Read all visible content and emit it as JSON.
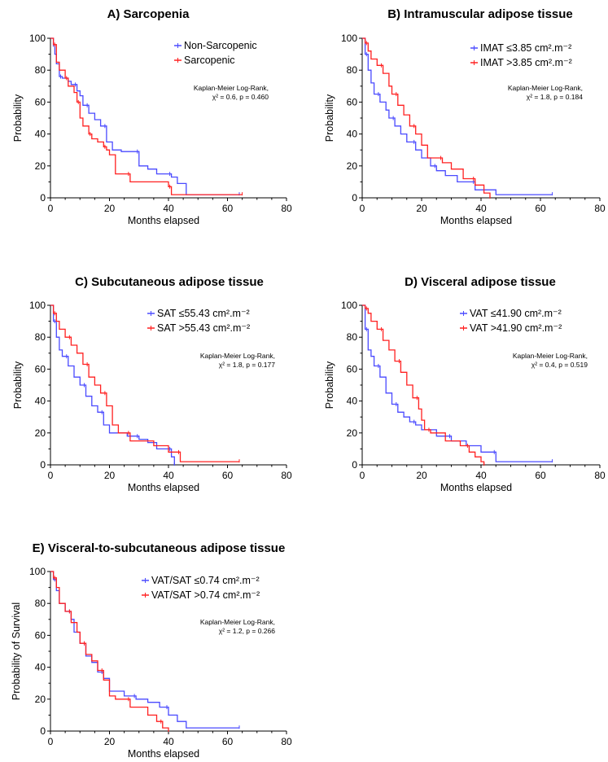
{
  "chart_data": [
    {
      "type": "line",
      "title": "A) Sarcopenia",
      "xlabel": "Months elapsed",
      "ylabel": "Probability",
      "xlim": [
        0,
        80
      ],
      "ylim": [
        0,
        100
      ],
      "xticks": [
        0,
        20,
        40,
        60,
        80
      ],
      "yticks": [
        0,
        20,
        40,
        60,
        80,
        100
      ],
      "legend_position": "top-right",
      "stats": [
        "Kaplan-Meier Log-Rank,",
        "χ² = 0.6, p = 0.460"
      ],
      "series": [
        {
          "name": "Non-Sarcopenic",
          "color": "#4a4aff",
          "x": [
            0,
            1,
            1.5,
            2,
            3,
            4,
            6,
            7,
            9,
            10,
            11,
            13,
            15,
            17,
            19,
            21,
            24,
            30,
            33,
            36,
            41,
            43,
            46,
            64
          ],
          "y": [
            100,
            96,
            90,
            84,
            76,
            75,
            73,
            71,
            67,
            64,
            58,
            53,
            49,
            45,
            35,
            30,
            29,
            20,
            18,
            15,
            13,
            9,
            2,
            2
          ]
        },
        {
          "name": "Sarcopenic",
          "color": "#ff2020",
          "x": [
            0,
            1,
            2,
            3,
            5,
            6,
            8,
            9,
            10,
            11,
            13,
            14,
            16,
            18,
            19,
            20,
            22,
            27,
            33,
            40,
            41,
            65
          ],
          "y": [
            100,
            96,
            85,
            80,
            75,
            70,
            66,
            60,
            50,
            45,
            40,
            37,
            35,
            32,
            30,
            27,
            15,
            10,
            10,
            7,
            2,
            2
          ]
        }
      ]
    },
    {
      "type": "line",
      "title": "B) Intramuscular adipose tissue",
      "xlabel": "Months elapsed",
      "ylabel": "Probability",
      "xlim": [
        0,
        80
      ],
      "ylim": [
        0,
        100
      ],
      "xticks": [
        0,
        20,
        40,
        60,
        80
      ],
      "yticks": [
        0,
        20,
        40,
        60,
        80,
        100
      ],
      "legend_position": "top-right",
      "stats": [
        "Kaplan-Meier Log-Rank,",
        "χ² = 1.8, p = 0.184"
      ],
      "series": [
        {
          "name": "IMAT ≤3.85 cm².m⁻²",
          "color": "#4a4aff",
          "x": [
            0,
            1,
            2,
            3,
            4,
            6,
            8,
            9,
            11,
            13,
            15,
            18,
            20,
            23,
            25,
            28,
            32,
            38,
            45,
            64
          ],
          "y": [
            100,
            90,
            80,
            72,
            65,
            60,
            55,
            50,
            45,
            40,
            35,
            30,
            25,
            20,
            17,
            14,
            10,
            5,
            2,
            2
          ]
        },
        {
          "name": "IMAT >3.85 cm².m⁻²",
          "color": "#ff2020",
          "x": [
            0,
            1,
            2,
            3,
            5,
            7,
            9,
            10,
            12,
            14,
            16,
            18,
            20,
            22,
            27,
            30,
            34,
            38,
            41,
            43
          ],
          "y": [
            100,
            97,
            92,
            87,
            83,
            78,
            70,
            65,
            58,
            52,
            45,
            40,
            33,
            25,
            22,
            18,
            12,
            8,
            3,
            0
          ]
        }
      ]
    },
    {
      "type": "line",
      "title": "C) Subcutaneous adipose tissue",
      "xlabel": "Months elapsed",
      "ylabel": "Probability",
      "xlim": [
        0,
        80
      ],
      "ylim": [
        0,
        100
      ],
      "xticks": [
        0,
        20,
        40,
        60,
        80
      ],
      "yticks": [
        0,
        20,
        40,
        60,
        80,
        100
      ],
      "legend_position": "top-right",
      "stats": [
        "Kaplan-Meier Log-Rank,",
        "χ² = 1.8, p = 0.177"
      ],
      "series": [
        {
          "name": "SAT ≤55.43 cm².m⁻²",
          "color": "#4a4aff",
          "x": [
            0,
            1,
            2,
            3,
            4,
            6,
            8,
            10,
            12,
            14,
            16,
            18,
            20,
            26,
            30,
            33,
            36,
            41,
            42
          ],
          "y": [
            100,
            90,
            80,
            72,
            68,
            62,
            55,
            50,
            43,
            37,
            33,
            25,
            20,
            18,
            16,
            14,
            10,
            5,
            0
          ]
        },
        {
          "name": "SAT >55.43 cm².m⁻²",
          "color": "#ff2020",
          "x": [
            0,
            1,
            2,
            3,
            5,
            7,
            9,
            11,
            13,
            15,
            17,
            19,
            21,
            23,
            27,
            35,
            40,
            44,
            64
          ],
          "y": [
            100,
            95,
            90,
            85,
            80,
            75,
            70,
            63,
            55,
            50,
            45,
            37,
            25,
            20,
            15,
            12,
            8,
            2,
            2
          ]
        }
      ]
    },
    {
      "type": "line",
      "title": "D) Visceral adipose tissue",
      "xlabel": "Months elapsed",
      "ylabel": "Probability",
      "xlim": [
        0,
        80
      ],
      "ylim": [
        0,
        100
      ],
      "xticks": [
        0,
        20,
        40,
        60,
        80
      ],
      "yticks": [
        0,
        20,
        40,
        60,
        80,
        100
      ],
      "legend_position": "top-right",
      "stats": [
        "Kaplan-Meier Log-Rank,",
        "χ² = 0.4, p = 0.519"
      ],
      "series": [
        {
          "name": "VAT ≤41.90 cm².m⁻²",
          "color": "#4a4aff",
          "x": [
            0,
            1,
            2,
            3,
            4,
            6,
            8,
            10,
            12,
            14,
            16,
            18,
            20,
            25,
            30,
            35,
            40,
            45,
            64
          ],
          "y": [
            100,
            85,
            72,
            68,
            62,
            55,
            45,
            38,
            33,
            30,
            27,
            25,
            22,
            18,
            15,
            12,
            8,
            2,
            2
          ]
        },
        {
          "name": "VAT >41.90 cm².m⁻²",
          "color": "#ff2020",
          "x": [
            0,
            1,
            2,
            3,
            5,
            7,
            9,
            11,
            13,
            15,
            17,
            19,
            20,
            21,
            23,
            28,
            33,
            36,
            38,
            40,
            41
          ],
          "y": [
            100,
            98,
            95,
            90,
            85,
            78,
            72,
            65,
            58,
            50,
            42,
            35,
            28,
            22,
            20,
            15,
            12,
            8,
            5,
            2,
            0
          ]
        }
      ]
    },
    {
      "type": "line",
      "title": "E) Visceral-to-subcutaneous adipose tissue",
      "xlabel": "Months elapsed",
      "ylabel": "Probability of Survival",
      "xlim": [
        0,
        80
      ],
      "ylim": [
        0,
        100
      ],
      "xticks": [
        0,
        20,
        40,
        60,
        80
      ],
      "yticks": [
        0,
        20,
        40,
        60,
        80,
        100
      ],
      "legend_position": "top-right",
      "stats": [
        "Kaplan-Meier Log-Rank,",
        "χ² = 1.2, p = 0.266"
      ],
      "series": [
        {
          "name": "VAT/SAT ≤0.74 cm².m⁻²",
          "color": "#4a4aff",
          "x": [
            0,
            1,
            2,
            3,
            5,
            7,
            8,
            10,
            12,
            14,
            16,
            18,
            20,
            25,
            29,
            33,
            37,
            40,
            43,
            46,
            64
          ],
          "y": [
            100,
            95,
            88,
            80,
            75,
            70,
            62,
            55,
            47,
            43,
            37,
            33,
            25,
            22,
            20,
            18,
            15,
            10,
            6,
            2,
            2
          ]
        },
        {
          "name": "VAT/SAT >0.74 cm².m⁻²",
          "color": "#ff2020",
          "x": [
            0,
            1,
            2,
            3,
            5,
            7,
            9,
            10,
            12,
            14,
            16,
            18,
            20,
            22,
            27,
            33,
            36,
            38,
            40
          ],
          "y": [
            100,
            96,
            90,
            80,
            75,
            68,
            62,
            55,
            48,
            44,
            38,
            32,
            22,
            20,
            15,
            10,
            6,
            2,
            0
          ]
        }
      ]
    }
  ]
}
